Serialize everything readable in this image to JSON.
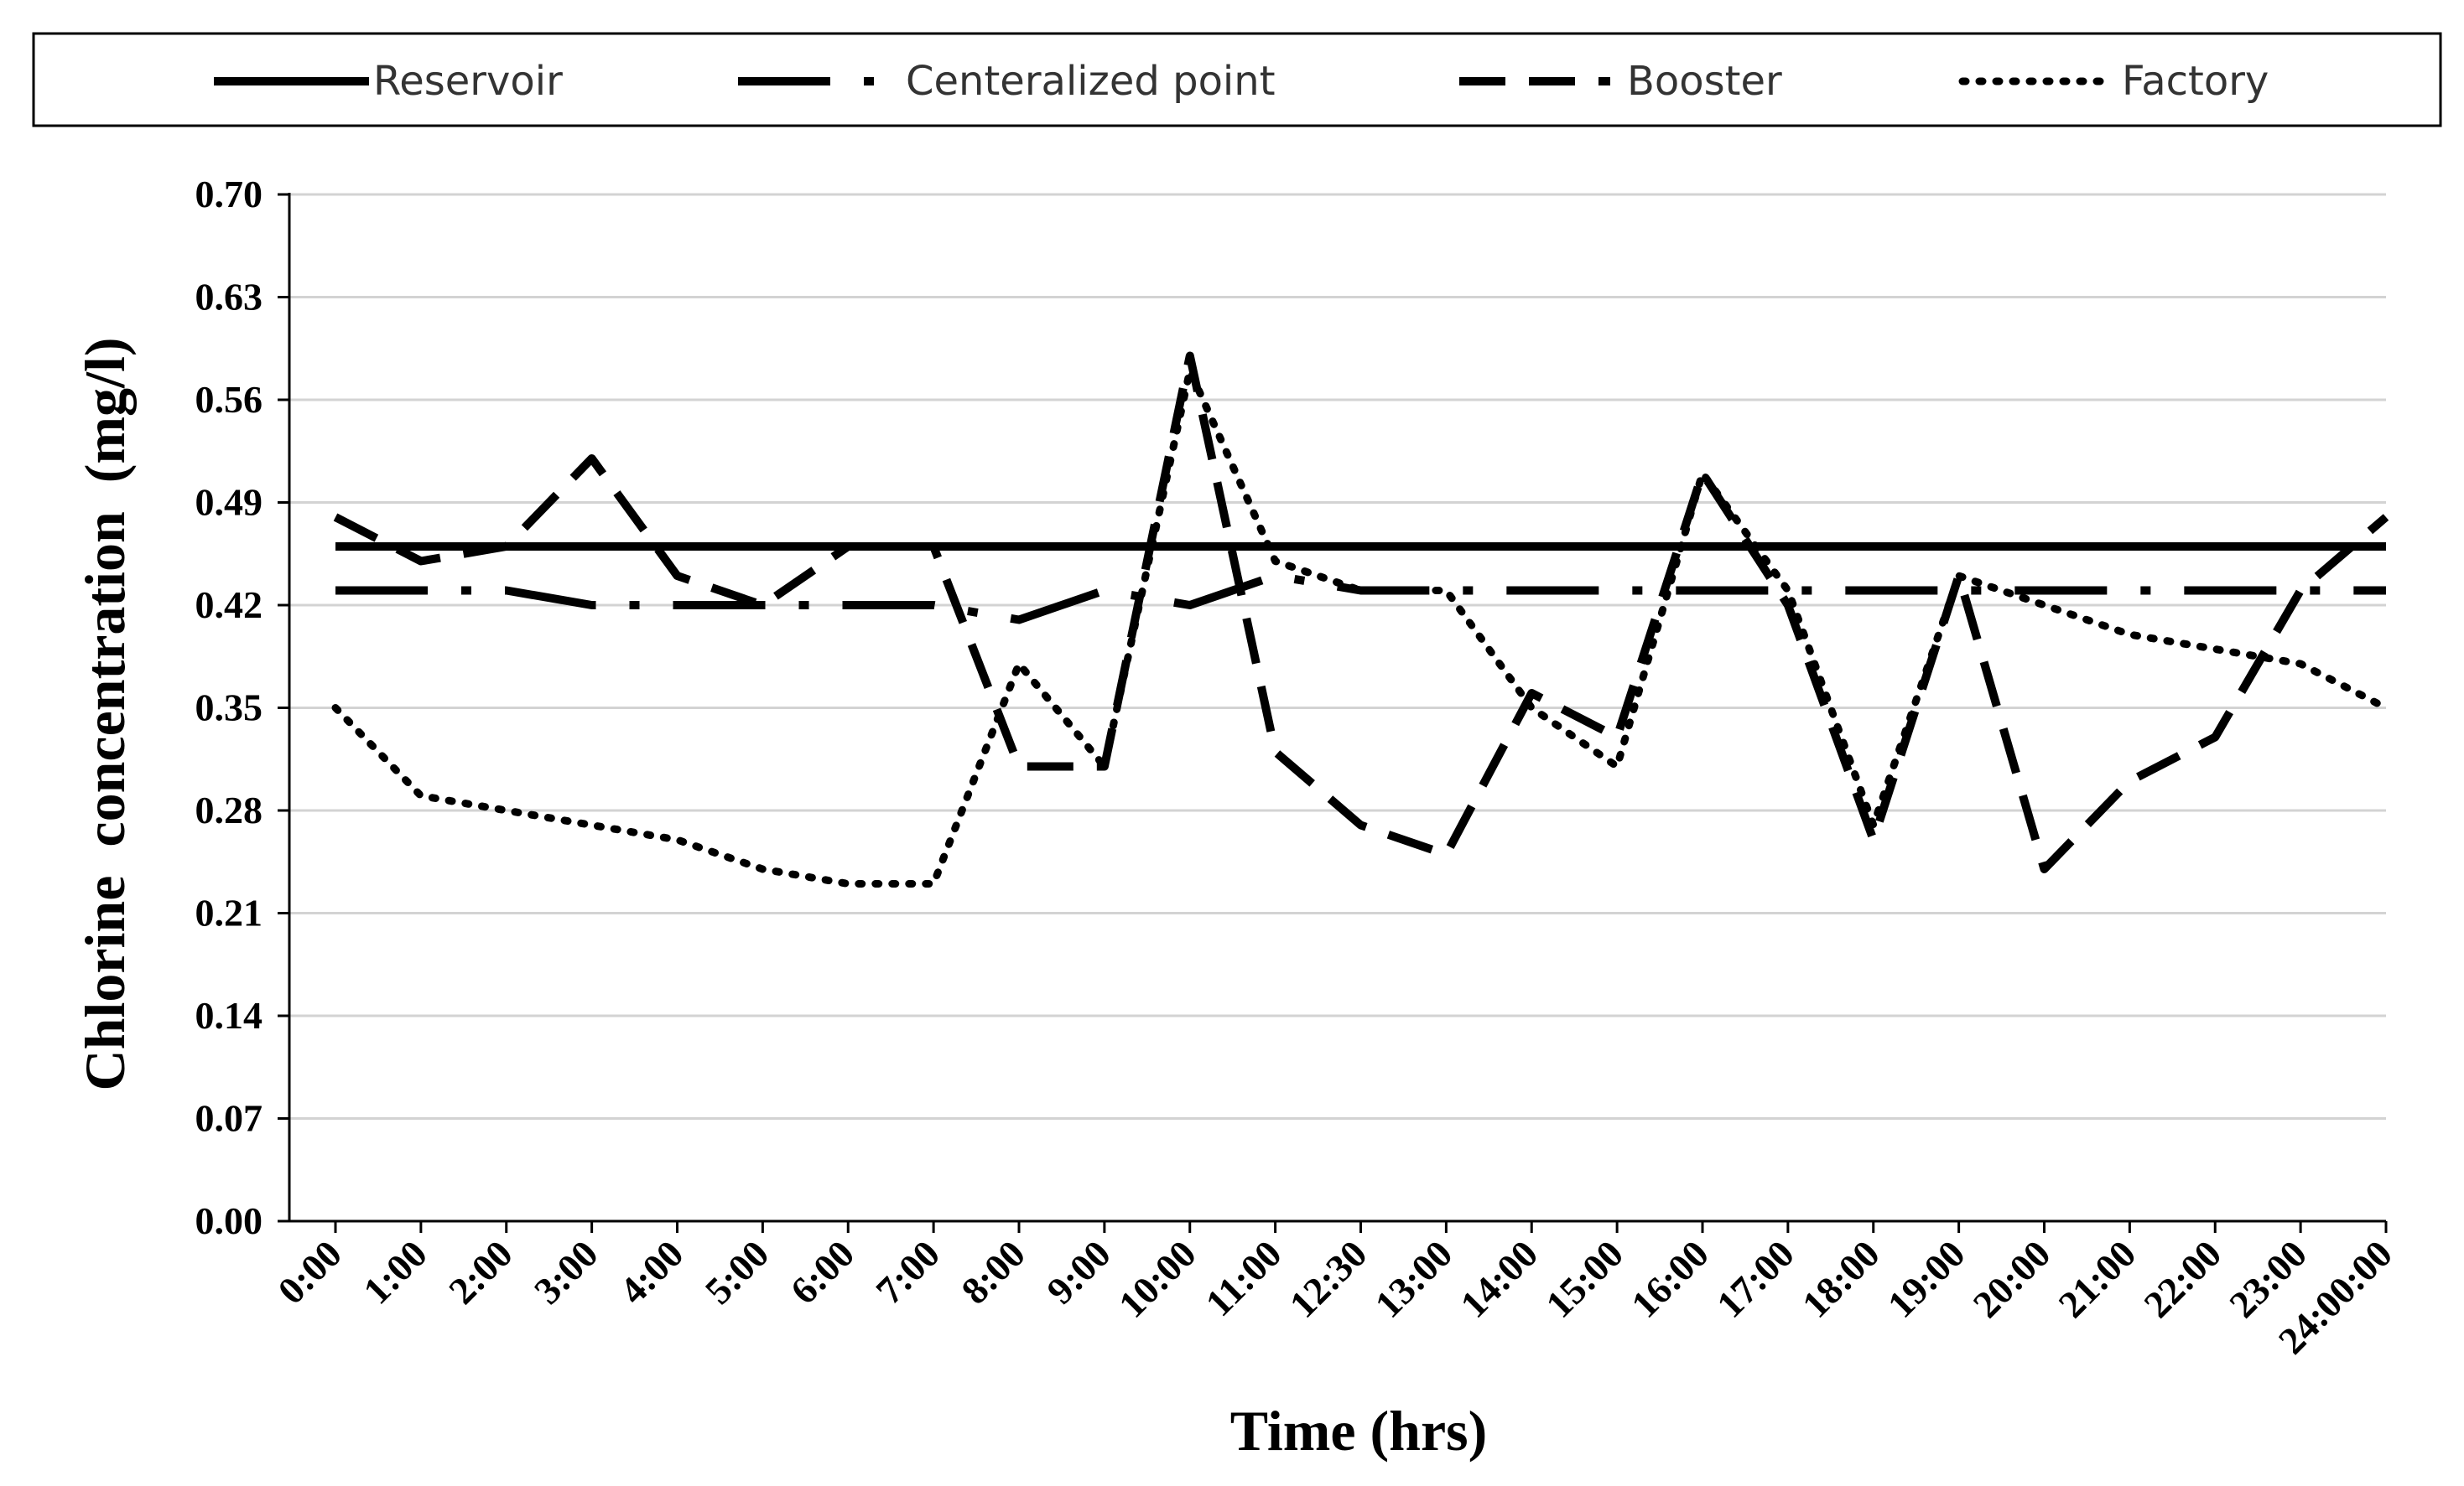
{
  "chart_data": {
    "type": "line",
    "title": "",
    "xlabel": "Time (hrs)",
    "ylabel": "Chlorine  concentration  (mg/l)",
    "ylim": [
      0,
      0.7
    ],
    "y_ticks": [
      "0.00",
      "0.07",
      "0.14",
      "0.21",
      "0.28",
      "0.35",
      "0.42",
      "0.49",
      "0.56",
      "0.63",
      "0.70"
    ],
    "categories": [
      "0:00",
      "1:00",
      "2:00",
      "3:00",
      "4:00",
      "5:00",
      "6:00",
      "7:00",
      "8:00",
      "9:00",
      "10:00",
      "11:00",
      "12:30",
      "13:00",
      "14:00",
      "15:00",
      "16:00",
      "17:00",
      "18:00",
      "19:00",
      "20:00",
      "21:00",
      "22:00",
      "23:00",
      "24:00:00"
    ],
    "grid": true,
    "legend_position": "top",
    "series": [
      {
        "name": "Reservoir",
        "style": "solid",
        "color": "#000000",
        "values": [
          0.46,
          0.46,
          0.46,
          0.46,
          0.46,
          0.46,
          0.46,
          0.46,
          0.46,
          0.46,
          0.46,
          0.46,
          0.46,
          0.46,
          0.46,
          0.46,
          0.46,
          0.46,
          0.46,
          0.46,
          0.46,
          0.46,
          0.46,
          0.46,
          0.46
        ]
      },
      {
        "name": "Centeralized point",
        "style": "dashdot",
        "color": "#000000",
        "values": [
          0.43,
          0.43,
          0.43,
          0.42,
          0.42,
          0.42,
          0.42,
          0.42,
          0.41,
          0.43,
          0.42,
          0.44,
          0.43,
          0.43,
          0.43,
          0.43,
          0.43,
          0.43,
          0.43,
          0.43,
          0.43,
          0.43,
          0.43,
          0.43,
          0.43
        ]
      },
      {
        "name": "Booster",
        "style": "dashed",
        "color": "#000000",
        "values": [
          0.48,
          0.45,
          0.46,
          0.52,
          0.44,
          0.42,
          0.46,
          0.46,
          0.31,
          0.31,
          0.59,
          0.32,
          0.27,
          0.25,
          0.36,
          0.33,
          0.51,
          0.42,
          0.26,
          0.44,
          0.24,
          0.3,
          0.33,
          0.43,
          0.48
        ]
      },
      {
        "name": "Factory",
        "style": "dotted",
        "color": "#000000",
        "values": [
          0.35,
          0.29,
          0.28,
          0.27,
          0.26,
          0.24,
          0.23,
          0.23,
          0.38,
          0.31,
          0.58,
          0.45,
          0.43,
          0.43,
          0.35,
          0.31,
          0.51,
          0.43,
          0.27,
          0.44,
          0.42,
          0.4,
          0.39,
          0.38,
          0.35
        ]
      }
    ]
  }
}
